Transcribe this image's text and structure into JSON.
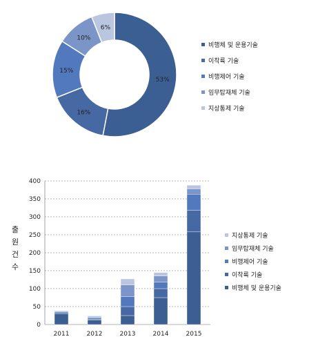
{
  "colors": {
    "s1": "#3B5E93",
    "s2": "#4769A3",
    "s3": "#5279BD",
    "s4": "#7C95C9",
    "s5": "#BAC6E0",
    "grid": "#9E9E9E",
    "axis": "#888888",
    "text": "#222222"
  },
  "chart_data": [
    {
      "type": "pie",
      "donut": true,
      "slices": [
        {
          "label": "비행체 및 운용기술",
          "value": 53,
          "value_label": "53%"
        },
        {
          "label": "이착륙 기술",
          "value": 16,
          "value_label": "16%"
        },
        {
          "label": "비행제어 기술",
          "value": 15,
          "value_label": "15%"
        },
        {
          "label": "임무탑재체 기술",
          "value": 10,
          "value_label": "10%"
        },
        {
          "label": "지상통제 기술",
          "value": 6,
          "value_label": "6%"
        }
      ],
      "legend_placement": "right"
    },
    {
      "type": "bar",
      "stacked": true,
      "categories": [
        "2011",
        "2012",
        "2013",
        "2014",
        "2015"
      ],
      "ylabel": "출원건수",
      "ylim": [
        0,
        400
      ],
      "yticks": [
        0,
        50,
        100,
        150,
        200,
        250,
        300,
        350,
        400
      ],
      "grid": true,
      "legend_placement": "right",
      "series": [
        {
          "name": "비행체 및 운용기술",
          "values": [
            30,
            12,
            25,
            75,
            258
          ]
        },
        {
          "name": "이착륙 기술",
          "values": [
            3,
            3,
            25,
            25,
            60
          ]
        },
        {
          "name": "비행제어 기술",
          "values": [
            2,
            3,
            28,
            18,
            45
          ]
        },
        {
          "name": "임무탑재체 기술",
          "values": [
            2,
            3,
            32,
            17,
            15
          ]
        },
        {
          "name": "지상통제 기술",
          "values": [
            2,
            3,
            17,
            10,
            10
          ]
        }
      ]
    }
  ]
}
